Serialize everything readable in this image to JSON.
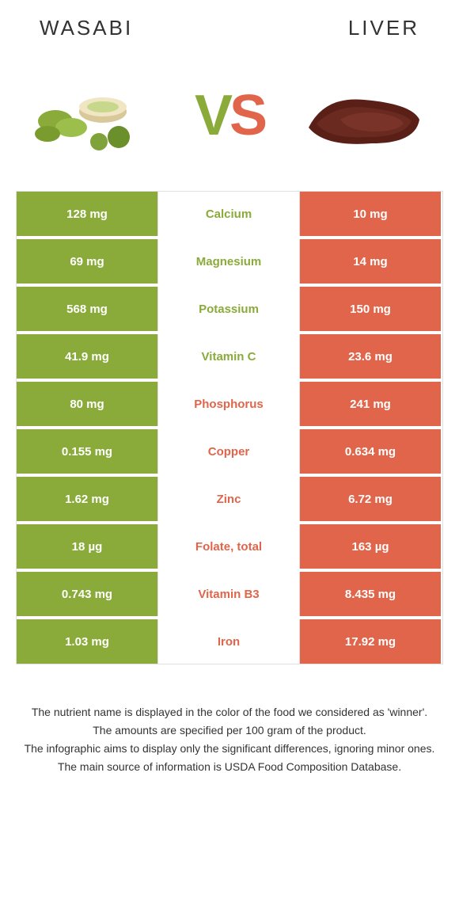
{
  "header": {
    "left_title": "WASABI",
    "right_title": "LIVER"
  },
  "vs": {
    "left": "V",
    "right": "S"
  },
  "colors": {
    "wasabi": "#8aab3a",
    "liver": "#e0654a",
    "border": "#e0e0e0",
    "text": "#333333",
    "bg": "#ffffff"
  },
  "table": {
    "rows": [
      {
        "left": "128 mg",
        "mid": "Calcium",
        "right": "10 mg",
        "winner": "wasabi"
      },
      {
        "left": "69 mg",
        "mid": "Magnesium",
        "right": "14 mg",
        "winner": "wasabi"
      },
      {
        "left": "568 mg",
        "mid": "Potassium",
        "right": "150 mg",
        "winner": "wasabi"
      },
      {
        "left": "41.9 mg",
        "mid": "Vitamin C",
        "right": "23.6 mg",
        "winner": "wasabi"
      },
      {
        "left": "80 mg",
        "mid": "Phosphorus",
        "right": "241 mg",
        "winner": "liver"
      },
      {
        "left": "0.155 mg",
        "mid": "Copper",
        "right": "0.634 mg",
        "winner": "liver"
      },
      {
        "left": "1.62 mg",
        "mid": "Zinc",
        "right": "6.72 mg",
        "winner": "liver"
      },
      {
        "left": "18 µg",
        "mid": "Folate, total",
        "right": "163 µg",
        "winner": "liver"
      },
      {
        "left": "0.743 mg",
        "mid": "Vitamin B3",
        "right": "8.435 mg",
        "winner": "liver"
      },
      {
        "left": "1.03 mg",
        "mid": "Iron",
        "right": "17.92 mg",
        "winner": "liver"
      }
    ]
  },
  "footnote": {
    "line1": "The nutrient name is displayed in the color of the food we considered as 'winner'.",
    "line2": "The amounts are specified per 100 gram of the product.",
    "line3": "The infographic aims to display only the significant differences, ignoring minor ones.",
    "line4": "The main source of information is USDA Food Composition Database."
  }
}
